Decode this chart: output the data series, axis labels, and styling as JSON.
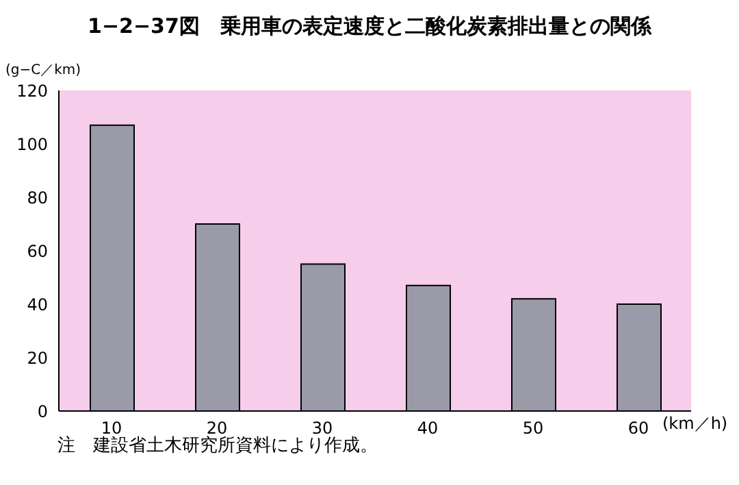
{
  "chart_data": {
    "type": "bar",
    "title": "1−2−37図　乗用車の表定速度と二酸化炭素排出量との関係",
    "xlabel": "(km／h)",
    "ylabel": "(g−C／km)",
    "annotations": [
      "注　建設省土木研究所資料により作成。"
    ],
    "categories": [
      "10",
      "20",
      "30",
      "40",
      "50",
      "60"
    ],
    "values": [
      107,
      70,
      55,
      47,
      42,
      40
    ],
    "color": "#9a9aa8",
    "ylim": [
      0,
      120
    ],
    "yticks": [
      0,
      20,
      40,
      60,
      80,
      100,
      120
    ],
    "grid": false,
    "legend": false
  }
}
